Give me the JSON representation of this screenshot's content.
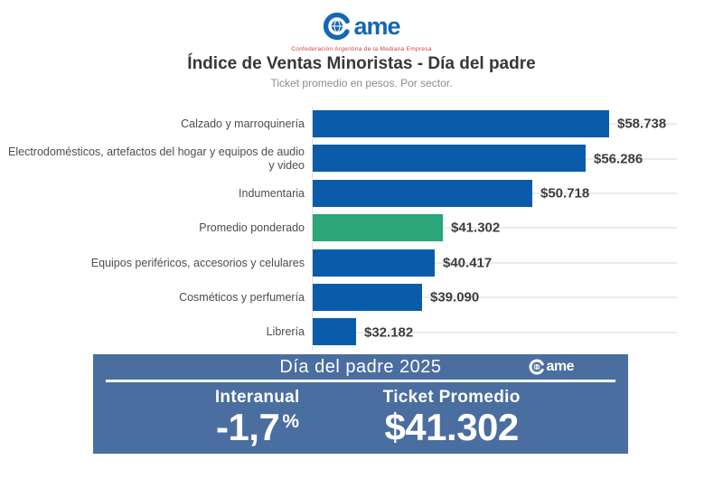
{
  "colors": {
    "bar_blue": "#0a5caa",
    "bar_green": "#2aa679",
    "panel_blue": "#4a6e9f",
    "logo_blue": "#1467b3",
    "tagline_red": "#cc4433",
    "gridline": "#ececec"
  },
  "logo": {
    "word": "ame",
    "tagline": "Confederación Argentina de la Mediana Empresa"
  },
  "header": {
    "title": "Índice de Ventas Minoristas - Día del padre",
    "subtitle": "Ticket promedio en pesos. Por sector."
  },
  "chart_data": {
    "type": "bar",
    "orientation": "horizontal",
    "title": "Índice de Ventas Minoristas - Día del padre",
    "subtitle": "Ticket promedio en pesos. Por sector.",
    "categories": [
      "Calzado y marroquinería",
      "Electrodomésticos, artefactos del hogar y equipos de audio y video",
      "Indumentaria",
      "Promedio ponderado",
      "Equipos periféricos, accesorios y celulares",
      "Cosméticos y perfumería",
      "Librería"
    ],
    "values": [
      58738,
      56286,
      50718,
      41302,
      40417,
      39090,
      32182
    ],
    "value_labels": [
      "$58.738",
      "$56.286",
      "$50.718",
      "$41.302",
      "$40.417",
      "$39.090",
      "$32.182"
    ],
    "highlight_index": 3,
    "highlight_category": "Promedio ponderado",
    "xlim": [
      27600,
      60000
    ],
    "xlabel": "",
    "ylabel": "",
    "grid": "faint horizontal row lines",
    "legend": "none",
    "data_labels": "outside bar end"
  },
  "summary_panel": {
    "title": "Día del padre 2025",
    "logo_word": "ame",
    "columns": [
      {
        "label": "Interanual",
        "value": "-1,7",
        "unit": "%"
      },
      {
        "label": "Ticket Promedio",
        "value": "$41.302",
        "unit": ""
      }
    ]
  }
}
